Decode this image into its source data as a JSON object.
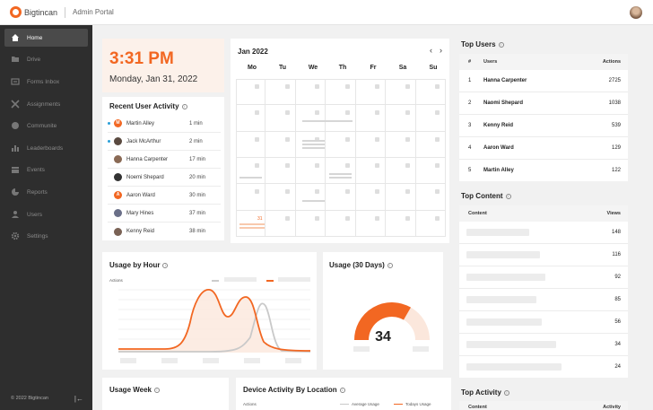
{
  "header": {
    "brand": "Bigtincan",
    "portal": "Admin Portal"
  },
  "sidebar": {
    "items": [
      {
        "label": "Home",
        "icon": "home-icon"
      },
      {
        "label": "Drive",
        "icon": "folder-icon"
      },
      {
        "label": "Forms Inbox",
        "icon": "inbox-icon"
      },
      {
        "label": "Assignments",
        "icon": "tools-icon"
      },
      {
        "label": "Communite",
        "icon": "chat-icon"
      },
      {
        "label": "Leaderboards",
        "icon": "bar-chart-icon"
      },
      {
        "label": "Events",
        "icon": "calendar-icon"
      },
      {
        "label": "Reports",
        "icon": "pie-chart-icon"
      },
      {
        "label": "Users",
        "icon": "user-icon"
      },
      {
        "label": "Settings",
        "icon": "gear-icon"
      }
    ],
    "footer": "© 2022 Bigtincan"
  },
  "clock": {
    "time": "3:31 PM",
    "date": "Monday, Jan 31, 2022"
  },
  "recent_activity": {
    "title": "Recent User Activity",
    "rows": [
      {
        "initial": "M",
        "name": "Martin Alley",
        "time": "1 min"
      },
      {
        "initial": "",
        "name": "Jack McArthur",
        "time": "2 min"
      },
      {
        "initial": "",
        "name": "Hanna Carpenter",
        "time": "17 min"
      },
      {
        "initial": "",
        "name": "Noemi Shepard",
        "time": "20 min"
      },
      {
        "initial": "A",
        "name": "Aaron Ward",
        "time": "30 min"
      },
      {
        "initial": "",
        "name": "Mary Hines",
        "time": "37 min"
      },
      {
        "initial": "",
        "name": "Kenny Reid",
        "time": "38 min"
      }
    ]
  },
  "calendar": {
    "month": "Jan 2022",
    "days": [
      "Mo",
      "Tu",
      "We",
      "Th",
      "Fr",
      "Sa",
      "Su"
    ],
    "today": "31"
  },
  "top_users": {
    "title": "Top Users",
    "headers": {
      "rank": "#",
      "users": "Users",
      "actions": "Actions"
    },
    "rows": [
      {
        "rank": "1",
        "name": "Hanna Carpenter",
        "actions": "2725"
      },
      {
        "rank": "2",
        "name": "Naomi Shepard",
        "actions": "1038"
      },
      {
        "rank": "3",
        "name": "Kenny Reid",
        "actions": "539"
      },
      {
        "rank": "4",
        "name": "Aaron Ward",
        "actions": "129"
      },
      {
        "rank": "5",
        "name": "Martin Alley",
        "actions": "122"
      }
    ]
  },
  "top_content": {
    "title": "Top Content",
    "headers": {
      "content": "Content",
      "views": "Views"
    },
    "views": [
      "148",
      "116",
      "92",
      "85",
      "56",
      "34",
      "24"
    ]
  },
  "top_activity": {
    "title": "Top Activity",
    "headers": {
      "content": "Content",
      "activity": "Activity"
    }
  },
  "usage_hour": {
    "title": "Usage by Hour",
    "ylabel": "Actions"
  },
  "usage_30": {
    "title": "Usage (30 Days)",
    "value": "34"
  },
  "usage_week": {
    "title": "Usage Week"
  },
  "device_activity": {
    "title": "Device Activity By Location",
    "ylabel": "Actions",
    "legend_avg": "Average Usage",
    "legend_today": "Todays Usage"
  },
  "colors": {
    "accent": "#f26722",
    "sidebar": "#2e2e2e",
    "active_dot": "#2a9fd8"
  }
}
